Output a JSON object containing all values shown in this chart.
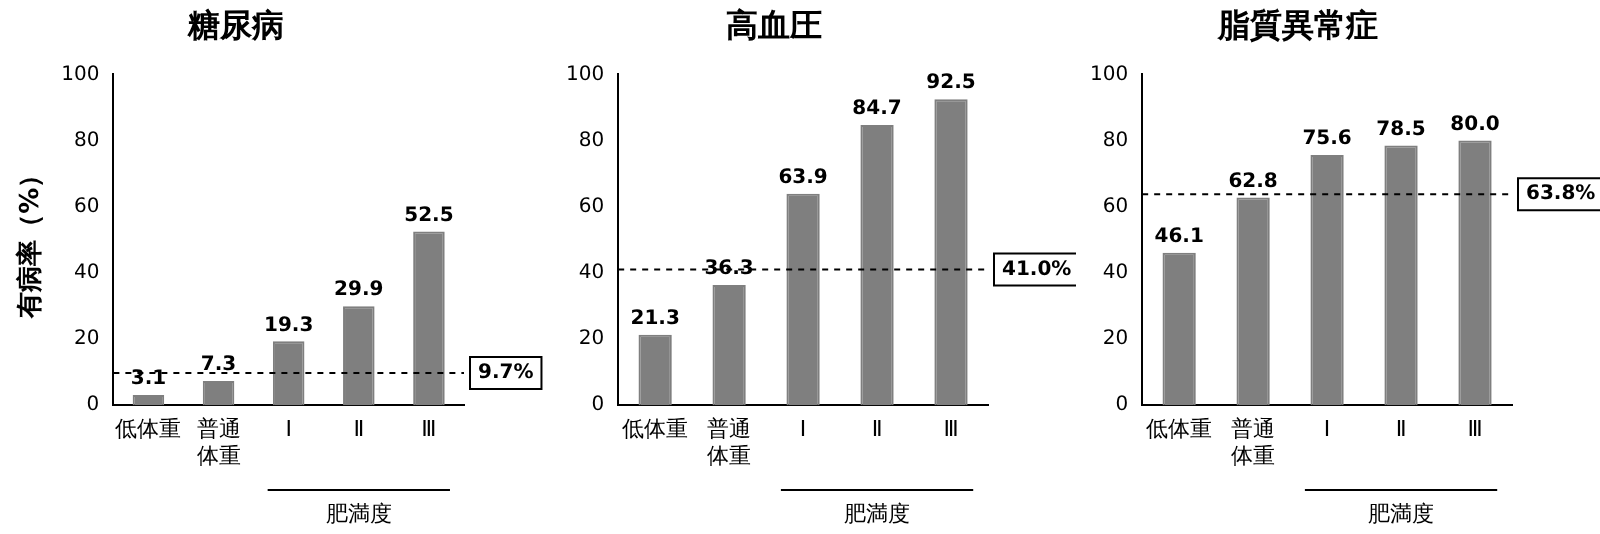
{
  "chart_data": [
    {
      "type": "bar",
      "title": "糖尿病",
      "ylabel": "有病率（%）",
      "categories": [
        "低体重",
        "普通体重",
        "Ⅰ",
        "Ⅱ",
        "Ⅲ"
      ],
      "values": [
        3.1,
        7.3,
        19.3,
        29.9,
        52.5
      ],
      "value_labels": [
        "3.1",
        "7.3",
        "19.3",
        "29.9",
        "52.5"
      ],
      "color": "#7f7f7f",
      "ylim": [
        0,
        100
      ],
      "yticks": [
        0,
        20,
        40,
        60,
        80,
        100
      ],
      "ref_lines": [
        {
          "axis": "y",
          "value": 9.7,
          "label": "9.7%",
          "line_style": "dashed"
        }
      ],
      "annotations": [
        "肥満度"
      ]
    },
    {
      "type": "bar",
      "title": "高血圧",
      "categories": [
        "低体重",
        "普通体重",
        "Ⅰ",
        "Ⅱ",
        "Ⅲ"
      ],
      "values": [
        21.3,
        36.3,
        63.9,
        84.7,
        92.5
      ],
      "value_labels": [
        "21.3",
        "36.3",
        "63.9",
        "84.7",
        "92.5"
      ],
      "color": "#7f7f7f",
      "ylim": [
        0,
        100
      ],
      "yticks": [
        0,
        20,
        40,
        60,
        80,
        100
      ],
      "ref_lines": [
        {
          "axis": "y",
          "value": 41.0,
          "label": "41.0%",
          "line_style": "dashed"
        }
      ],
      "annotations": [
        "肥満度"
      ]
    },
    {
      "type": "bar",
      "title": "脂質異常症",
      "categories": [
        "低体重",
        "普通体重",
        "Ⅰ",
        "Ⅱ",
        "Ⅲ"
      ],
      "values": [
        46.1,
        62.8,
        75.6,
        78.5,
        80.0
      ],
      "value_labels": [
        "46.1",
        "62.8",
        "75.6",
        "78.5",
        "80.0"
      ],
      "color": "#7f7f7f",
      "ylim": [
        0,
        100
      ],
      "yticks": [
        0,
        20,
        40,
        60,
        80,
        100
      ],
      "ref_lines": [
        {
          "axis": "y",
          "value": 63.8,
          "label": "63.8%",
          "line_style": "dashed"
        }
      ],
      "annotations": [
        "肥満度"
      ]
    }
  ]
}
